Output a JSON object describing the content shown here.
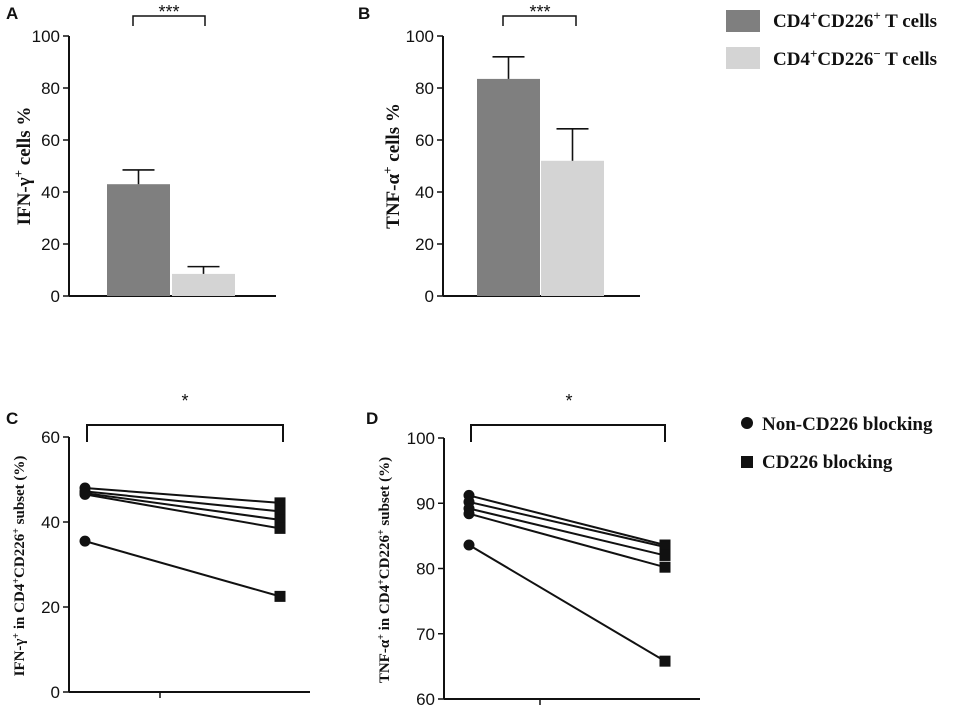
{
  "chart_data": [
    {
      "panel": "A",
      "type": "bar",
      "ylabel_parts": [
        "IFN-γ",
        "+",
        " cells %"
      ],
      "ylim": [
        0,
        100
      ],
      "yticks": [
        0,
        20,
        40,
        60,
        80,
        100
      ],
      "series": [
        {
          "name": "CD4+CD226+ T cells",
          "value": 43,
          "error": 5.5,
          "color": "#7f7f7f"
        },
        {
          "name": "CD4+CD226- T cells",
          "value": 8.5,
          "error": 2.8,
          "color": "#d4d4d4"
        }
      ],
      "significance": "***"
    },
    {
      "panel": "B",
      "type": "bar",
      "ylabel_parts": [
        "TNF-α",
        "+",
        " cells %"
      ],
      "ylim": [
        0,
        100
      ],
      "yticks": [
        0,
        20,
        40,
        60,
        80,
        100
      ],
      "series": [
        {
          "name": "CD4+CD226+ T cells",
          "value": 83.5,
          "error": 8.5,
          "color": "#7f7f7f"
        },
        {
          "name": "CD4+CD226- T cells",
          "value": 52,
          "error": 12.3,
          "color": "#d4d4d4"
        }
      ],
      "significance": "***"
    },
    {
      "panel": "C",
      "type": "line",
      "ylabel_parts": [
        "IFN-γ",
        "+",
        " in CD4",
        "+",
        "CD226",
        "+",
        " subset (%)"
      ],
      "ylim": [
        0,
        60
      ],
      "yticks": [
        0,
        20,
        40,
        60
      ],
      "conditions": [
        "Non-CD226 blocking",
        "CD226 blocking"
      ],
      "pairs": [
        [
          48,
          44.5
        ],
        [
          47.2,
          42.5
        ],
        [
          46.8,
          40.5
        ],
        [
          46.5,
          38.5
        ],
        [
          35.5,
          22.5
        ]
      ],
      "significance": "*"
    },
    {
      "panel": "D",
      "type": "line",
      "ylabel_parts": [
        "TNF-α",
        "+",
        " in CD4",
        "+",
        "CD226",
        "+",
        " subset (%)"
      ],
      "ylim": [
        60,
        100
      ],
      "yticks": [
        60,
        70,
        80,
        90,
        100
      ],
      "conditions": [
        "Non-CD226 blocking",
        "CD226 blocking"
      ],
      "pairs": [
        [
          91.2,
          83.6
        ],
        [
          90.2,
          83.3
        ],
        [
          89.2,
          82
        ],
        [
          88.4,
          80.2
        ],
        [
          83.6,
          65.8
        ]
      ],
      "significance": "*"
    }
  ],
  "legend_top": [
    {
      "parts": [
        "CD4",
        "+",
        "CD226",
        "+",
        " T cells"
      ],
      "color": "#7f7f7f"
    },
    {
      "parts": [
        "CD4",
        "+",
        "CD226",
        "−",
        " T cells"
      ],
      "color": "#d4d4d4"
    }
  ],
  "legend_bottom": [
    {
      "label": "Non-CD226 blocking",
      "marker": "circle"
    },
    {
      "label": "CD226 blocking",
      "marker": "square"
    }
  ]
}
